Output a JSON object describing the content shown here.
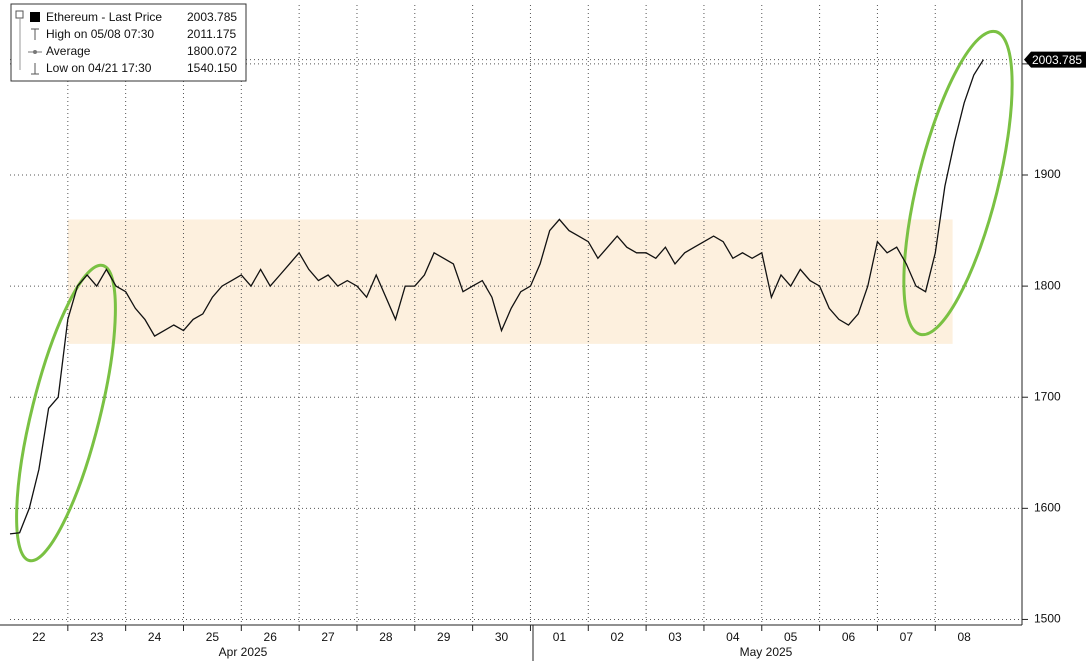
{
  "chart_data": {
    "type": "line",
    "series": [
      {
        "name": "Ethereum - Last Price",
        "color": "#111111",
        "values": [
          1577,
          1578,
          1600,
          1635,
          1690,
          1700,
          1770,
          1800,
          1810,
          1800,
          1815,
          1800,
          1795,
          1780,
          1770,
          1755,
          1760,
          1765,
          1760,
          1770,
          1775,
          1790,
          1800,
          1805,
          1810,
          1800,
          1815,
          1800,
          1810,
          1820,
          1830,
          1815,
          1805,
          1810,
          1800,
          1805,
          1800,
          1790,
          1810,
          1790,
          1770,
          1800,
          1800,
          1810,
          1830,
          1825,
          1820,
          1795,
          1800,
          1805,
          1790,
          1760,
          1780,
          1795,
          1800,
          1820,
          1850,
          1860,
          1850,
          1845,
          1840,
          1825,
          1835,
          1845,
          1835,
          1830,
          1830,
          1825,
          1835,
          1820,
          1830,
          1835,
          1840,
          1845,
          1840,
          1825,
          1830,
          1825,
          1830,
          1790,
          1810,
          1800,
          1815,
          1805,
          1800,
          1780,
          1770,
          1765,
          1775,
          1800,
          1840,
          1830,
          1835,
          1820,
          1800,
          1795,
          1830,
          1890,
          1930,
          1965,
          1990,
          2003.785
        ]
      }
    ],
    "xlim": [
      0,
      105
    ],
    "xticks": [
      {
        "value": 3,
        "label": "22"
      },
      {
        "value": 9,
        "label": "23"
      },
      {
        "value": 15,
        "label": "24"
      },
      {
        "value": 21,
        "label": "25"
      },
      {
        "value": 27,
        "label": "26"
      },
      {
        "value": 33,
        "label": "27"
      },
      {
        "value": 39,
        "label": "28"
      },
      {
        "value": 45,
        "label": "29"
      },
      {
        "value": 51,
        "label": "30"
      },
      {
        "value": 57,
        "label": "01"
      },
      {
        "value": 63,
        "label": "02"
      },
      {
        "value": 69,
        "label": "03"
      },
      {
        "value": 75,
        "label": "04"
      },
      {
        "value": 81,
        "label": "05"
      },
      {
        "value": 87,
        "label": "06"
      },
      {
        "value": 93,
        "label": "07"
      },
      {
        "value": 99,
        "label": "08"
      }
    ],
    "xgrid": [
      6,
      12,
      18,
      24,
      30,
      36,
      42,
      48,
      54,
      60,
      66,
      72,
      78,
      84,
      90,
      96
    ],
    "months": [
      "Apr 2025",
      "May 2025"
    ],
    "ylim": [
      1495,
      2053
    ],
    "yticks": [
      1500,
      1600,
      1700,
      1800,
      1900,
      2000
    ],
    "grid": true,
    "band": {
      "xlim": [
        6,
        97.8
      ],
      "ylim": [
        1748,
        1860
      ],
      "color": "#fdf0de"
    },
    "legend": [
      {
        "label": "Ethereum - Last Price",
        "value": {
          "value": 2003.785,
          "label": "2003.785"
        }
      },
      {
        "label": "High on 05/08 07:30",
        "value": {
          "value": 2011.175,
          "label": "2011.175"
        }
      },
      {
        "label": "Average",
        "value": {
          "value": 1800.072,
          "label": "1800.072"
        }
      },
      {
        "label": "Low on 04/21 17:30",
        "value": {
          "value": 1540.15,
          "label": "1540.150"
        }
      }
    ]
  }
}
